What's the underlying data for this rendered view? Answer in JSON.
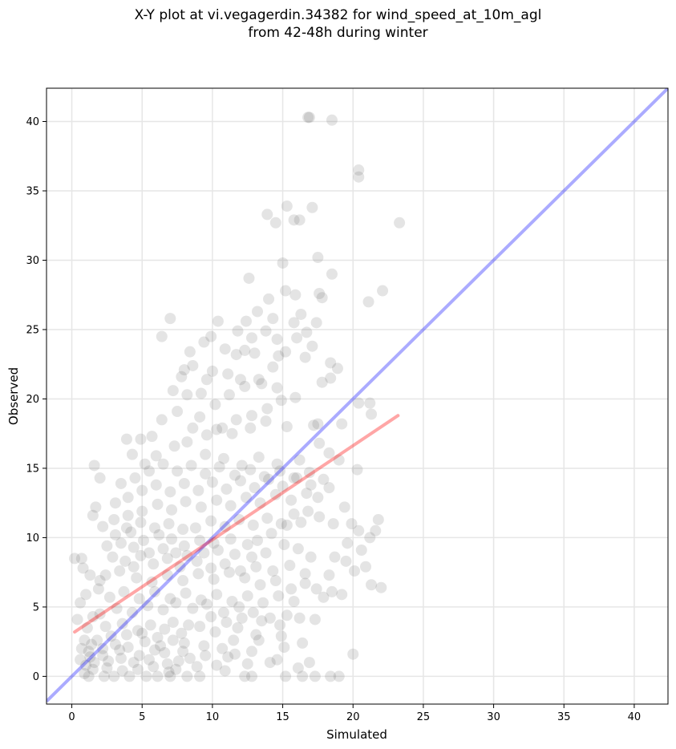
{
  "chart_data": {
    "type": "scatter",
    "title_line1": "X-Y plot at vi.vegagerdin.34382 for wind_speed_at_10m_agl",
    "title_line2": "from 42-48h during winter",
    "xlabel": "Simulated",
    "ylabel": "Observed",
    "xlim": [
      -1.8,
      42.4
    ],
    "ylim": [
      -2.0,
      42.4
    ],
    "xticks": [
      0,
      5,
      10,
      15,
      20,
      25,
      30,
      35,
      40
    ],
    "yticks": [
      0,
      5,
      10,
      15,
      20,
      25,
      30,
      35,
      40
    ],
    "grid": true,
    "colors": {
      "points": "#555555",
      "one_to_one": "#0000ff",
      "fit": "#ff0000"
    },
    "one_to_one_line": {
      "x": [
        -1.8,
        42.4
      ],
      "y": [
        -1.8,
        42.4
      ]
    },
    "fit_line": {
      "x": [
        0.2,
        23.2
      ],
      "y": [
        3.2,
        18.8
      ]
    },
    "points": [
      [
        16.9,
        40.3
      ],
      [
        18.5,
        40.1
      ],
      [
        16.8,
        40.3
      ],
      [
        20.4,
        36.5
      ],
      [
        20.4,
        36.0
      ],
      [
        23.3,
        32.7
      ],
      [
        15.3,
        33.9
      ],
      [
        16.2,
        32.9
      ],
      [
        17.1,
        33.8
      ],
      [
        15.8,
        32.9
      ],
      [
        13.9,
        33.3
      ],
      [
        14.5,
        32.7
      ],
      [
        15.0,
        29.8
      ],
      [
        12.6,
        28.7
      ],
      [
        17.5,
        30.2
      ],
      [
        18.5,
        29.0
      ],
      [
        22.1,
        27.8
      ],
      [
        21.1,
        27.0
      ],
      [
        15.2,
        27.8
      ],
      [
        15.9,
        27.5
      ],
      [
        17.8,
        27.3
      ],
      [
        17.6,
        27.6
      ],
      [
        16.3,
        26.1
      ],
      [
        14.0,
        27.2
      ],
      [
        13.2,
        26.3
      ],
      [
        12.4,
        25.6
      ],
      [
        10.4,
        25.6
      ],
      [
        7.0,
        25.8
      ],
      [
        6.4,
        24.5
      ],
      [
        9.9,
        24.5
      ],
      [
        14.3,
        25.8
      ],
      [
        16.7,
        24.8
      ],
      [
        17.4,
        25.5
      ],
      [
        16.0,
        24.4
      ],
      [
        15.8,
        25.5
      ],
      [
        18.4,
        22.6
      ],
      [
        18.9,
        22.2
      ],
      [
        17.1,
        23.8
      ],
      [
        16.6,
        23.0
      ],
      [
        15.2,
        23.4
      ],
      [
        14.7,
        23.1
      ],
      [
        13.0,
        23.3
      ],
      [
        12.3,
        23.5
      ],
      [
        11.7,
        23.2
      ],
      [
        8.4,
        23.4
      ],
      [
        9.4,
        24.1
      ],
      [
        10.0,
        22.0
      ],
      [
        8.0,
        22.1
      ],
      [
        7.8,
        21.6
      ],
      [
        11.1,
        21.8
      ],
      [
        12.0,
        21.4
      ],
      [
        13.5,
        21.1
      ],
      [
        14.6,
        20.8
      ],
      [
        17.8,
        21.2
      ],
      [
        18.4,
        21.5
      ],
      [
        20.4,
        19.7
      ],
      [
        21.2,
        19.7
      ],
      [
        21.3,
        18.9
      ],
      [
        19.2,
        18.2
      ],
      [
        17.5,
        18.2
      ],
      [
        17.2,
        18.1
      ],
      [
        15.3,
        18.0
      ],
      [
        13.8,
        18.4
      ],
      [
        12.7,
        17.9
      ],
      [
        11.4,
        17.5
      ],
      [
        10.3,
        17.8
      ],
      [
        9.1,
        18.7
      ],
      [
        7.5,
        19.1
      ],
      [
        6.4,
        18.5
      ],
      [
        5.7,
        17.3
      ],
      [
        4.9,
        17.1
      ],
      [
        3.9,
        17.1
      ],
      [
        4.3,
        16.0
      ],
      [
        5.2,
        15.3
      ],
      [
        6.0,
        15.9
      ],
      [
        7.3,
        16.6
      ],
      [
        8.2,
        16.9
      ],
      [
        9.5,
        16.0
      ],
      [
        10.8,
        15.7
      ],
      [
        12.1,
        15.2
      ],
      [
        13.3,
        15.8
      ],
      [
        14.6,
        15.3
      ],
      [
        16.2,
        15.6
      ],
      [
        17.6,
        16.8
      ],
      [
        18.3,
        16.1
      ],
      [
        19.0,
        15.6
      ],
      [
        20.3,
        14.9
      ],
      [
        1.6,
        15.2
      ],
      [
        2.0,
        14.3
      ],
      [
        1.7,
        12.2
      ],
      [
        1.5,
        11.6
      ],
      [
        0.7,
        8.5
      ],
      [
        0.2,
        8.5
      ],
      [
        0.8,
        7.8
      ],
      [
        1.3,
        7.3
      ],
      [
        2.0,
        6.9
      ],
      [
        1.0,
        5.9
      ],
      [
        0.6,
        5.3
      ],
      [
        0.4,
        4.1
      ],
      [
        1.1,
        3.5
      ],
      [
        0.9,
        2.6
      ],
      [
        1.2,
        1.8
      ],
      [
        0.6,
        1.2
      ],
      [
        1.0,
        0.8
      ],
      [
        1.5,
        0.5
      ],
      [
        1.2,
        0.0
      ],
      [
        2.3,
        0.0
      ],
      [
        3.0,
        0.0
      ],
      [
        4.1,
        0.0
      ],
      [
        5.3,
        0.0
      ],
      [
        6.1,
        0.0
      ],
      [
        7.0,
        0.0
      ],
      [
        8.2,
        0.0
      ],
      [
        9.1,
        0.0
      ],
      [
        12.3,
        0.0
      ],
      [
        12.8,
        0.0
      ],
      [
        15.2,
        0.0
      ],
      [
        16.4,
        0.0
      ],
      [
        17.3,
        0.0
      ],
      [
        18.4,
        0.0
      ],
      [
        19.0,
        0.0
      ],
      [
        20.0,
        1.6
      ],
      [
        16.9,
        1.0
      ],
      [
        14.1,
        1.0
      ],
      [
        12.5,
        0.9
      ],
      [
        11.1,
        1.4
      ],
      [
        10.3,
        0.8
      ],
      [
        9.5,
        1.5
      ],
      [
        8.4,
        1.3
      ],
      [
        7.6,
        1.1
      ],
      [
        6.8,
        0.9
      ],
      [
        5.5,
        1.2
      ],
      [
        4.4,
        1.0
      ],
      [
        3.5,
        1.3
      ],
      [
        2.6,
        1.1
      ],
      [
        2.2,
        2.0
      ],
      [
        3.1,
        2.3
      ],
      [
        4.0,
        2.1
      ],
      [
        5.2,
        2.5
      ],
      [
        6.3,
        2.2
      ],
      [
        7.2,
        2.6
      ],
      [
        8.0,
        2.4
      ],
      [
        9.4,
        2.2
      ],
      [
        10.7,
        2.0
      ],
      [
        11.5,
        2.6
      ],
      [
        13.3,
        2.6
      ],
      [
        14.9,
        2.9
      ],
      [
        16.4,
        2.4
      ],
      [
        13.1,
        3.0
      ],
      [
        11.8,
        3.5
      ],
      [
        10.2,
        3.2
      ],
      [
        9.1,
        3.6
      ],
      [
        7.8,
        3.1
      ],
      [
        6.6,
        3.4
      ],
      [
        5.6,
        3.7
      ],
      [
        4.7,
        3.3
      ],
      [
        3.6,
        3.8
      ],
      [
        2.4,
        3.6
      ],
      [
        2.0,
        4.5
      ],
      [
        3.2,
        4.9
      ],
      [
        4.3,
        4.6
      ],
      [
        5.4,
        5.1
      ],
      [
        6.5,
        4.8
      ],
      [
        7.4,
        5.3
      ],
      [
        8.6,
        4.9
      ],
      [
        9.6,
        5.2
      ],
      [
        10.8,
        4.6
      ],
      [
        11.9,
        5.0
      ],
      [
        12.9,
        4.6
      ],
      [
        14.1,
        4.2
      ],
      [
        15.3,
        4.4
      ],
      [
        16.2,
        4.2
      ],
      [
        17.3,
        4.1
      ],
      [
        17.9,
        5.7
      ],
      [
        17.4,
        6.3
      ],
      [
        18.5,
        6.1
      ],
      [
        19.2,
        5.9
      ],
      [
        18.3,
        7.3
      ],
      [
        20.1,
        7.6
      ],
      [
        20.9,
        7.9
      ],
      [
        22.0,
        6.4
      ],
      [
        21.3,
        6.6
      ],
      [
        19.5,
        8.3
      ],
      [
        18.7,
        8.6
      ],
      [
        19.6,
        9.6
      ],
      [
        21.2,
        10.0
      ],
      [
        21.6,
        10.5
      ],
      [
        20.4,
        10.5
      ],
      [
        21.8,
        11.3
      ],
      [
        20.6,
        9.1
      ],
      [
        19.4,
        12.2
      ],
      [
        19.9,
        11.0
      ],
      [
        18.6,
        11.0
      ],
      [
        17.6,
        11.5
      ],
      [
        16.3,
        11.1
      ],
      [
        15.3,
        10.9
      ],
      [
        14.2,
        10.3
      ],
      [
        13.2,
        9.8
      ],
      [
        12.5,
        9.5
      ],
      [
        11.3,
        9.9
      ],
      [
        10.1,
        9.6
      ],
      [
        9.1,
        9.8
      ],
      [
        8.0,
        9.4
      ],
      [
        7.1,
        9.9
      ],
      [
        6.2,
        10.2
      ],
      [
        5.1,
        9.8
      ],
      [
        4.2,
        10.4
      ],
      [
        3.1,
        10.2
      ],
      [
        2.5,
        9.4
      ],
      [
        2.9,
        8.6
      ],
      [
        3.8,
        8.3
      ],
      [
        4.9,
        8.7
      ],
      [
        5.8,
        8.1
      ],
      [
        6.8,
        8.5
      ],
      [
        7.7,
        7.9
      ],
      [
        8.9,
        8.3
      ],
      [
        9.9,
        7.8
      ],
      [
        10.9,
        8.1
      ],
      [
        12.0,
        7.6
      ],
      [
        13.1,
        7.9
      ],
      [
        14.3,
        7.6
      ],
      [
        15.5,
        8.0
      ],
      [
        16.6,
        7.4
      ],
      [
        17.0,
        8.6
      ],
      [
        16.1,
        9.2
      ],
      [
        15.1,
        9.5
      ],
      [
        13.8,
        8.9
      ],
      [
        12.8,
        8.6
      ],
      [
        11.6,
        8.8
      ],
      [
        10.4,
        9.1
      ],
      [
        9.4,
        8.9
      ],
      [
        8.2,
        8.7
      ],
      [
        7.4,
        8.9
      ],
      [
        6.5,
        9.2
      ],
      [
        5.5,
        8.9
      ],
      [
        4.4,
        9.3
      ],
      [
        3.5,
        9.6
      ],
      [
        2.2,
        10.8
      ],
      [
        3.0,
        11.3
      ],
      [
        4.0,
        11.6
      ],
      [
        5.0,
        11.9
      ],
      [
        6.1,
        12.4
      ],
      [
        7.1,
        12.0
      ],
      [
        8.1,
        12.6
      ],
      [
        9.2,
        12.2
      ],
      [
        10.3,
        12.7
      ],
      [
        11.3,
        12.3
      ],
      [
        12.4,
        12.9
      ],
      [
        13.4,
        12.5
      ],
      [
        14.5,
        13.1
      ],
      [
        15.6,
        12.7
      ],
      [
        16.7,
        13.2
      ],
      [
        17.5,
        12.9
      ],
      [
        18.3,
        13.6
      ],
      [
        17.9,
        14.2
      ],
      [
        16.9,
        14.7
      ],
      [
        15.8,
        14.3
      ],
      [
        14.8,
        14.8
      ],
      [
        13.7,
        14.4
      ],
      [
        12.7,
        14.9
      ],
      [
        11.6,
        14.5
      ],
      [
        10.5,
        15.1
      ],
      [
        9.5,
        14.6
      ],
      [
        8.5,
        15.2
      ],
      [
        7.5,
        14.8
      ],
      [
        6.5,
        15.3
      ],
      [
        5.5,
        14.8
      ],
      [
        4.5,
        14.3
      ],
      [
        3.5,
        13.9
      ],
      [
        3.1,
        12.5
      ],
      [
        4.0,
        12.9
      ],
      [
        5.0,
        13.4
      ],
      [
        6.0,
        13.8
      ],
      [
        7.0,
        13.3
      ],
      [
        8.0,
        13.9
      ],
      [
        9.0,
        13.4
      ],
      [
        10.0,
        14.0
      ],
      [
        11.0,
        13.5
      ],
      [
        12.0,
        14.1
      ],
      [
        13.0,
        13.6
      ],
      [
        14.0,
        14.2
      ],
      [
        15.0,
        13.7
      ],
      [
        16.0,
        14.3
      ],
      [
        17.0,
        13.8
      ],
      [
        4.6,
        7.1
      ],
      [
        5.7,
        6.8
      ],
      [
        6.8,
        7.3
      ],
      [
        7.9,
        6.9
      ],
      [
        9.0,
        7.4
      ],
      [
        10.1,
        7.0
      ],
      [
        11.2,
        7.5
      ],
      [
        12.3,
        7.1
      ],
      [
        13.4,
        6.6
      ],
      [
        14.5,
        6.9
      ],
      [
        15.6,
        6.3
      ],
      [
        16.6,
        6.7
      ],
      [
        15.8,
        5.4
      ],
      [
        14.7,
        5.8
      ],
      [
        13.6,
        5.3
      ],
      [
        12.5,
        5.8
      ],
      [
        11.4,
        5.4
      ],
      [
        10.3,
        5.9
      ],
      [
        9.2,
        5.5
      ],
      [
        8.1,
        6.0
      ],
      [
        7.0,
        5.6
      ],
      [
        5.9,
        6.1
      ],
      [
        4.8,
        5.6
      ],
      [
        3.7,
        6.1
      ],
      [
        2.7,
        5.7
      ],
      [
        1.9,
        6.3
      ],
      [
        2.4,
        7.3
      ],
      [
        3.4,
        7.6
      ],
      [
        4.4,
        7.9
      ],
      [
        1.5,
        4.3
      ],
      [
        2.8,
        2.9
      ],
      [
        3.9,
        3.0
      ],
      [
        5.0,
        3.1
      ],
      [
        6.1,
        2.8
      ],
      [
        7.2,
        3.9
      ],
      [
        8.3,
        3.7
      ],
      [
        9.9,
        4.3
      ],
      [
        11.0,
        3.9
      ],
      [
        12.1,
        4.2
      ],
      [
        13.5,
        4.0
      ],
      [
        14.8,
        3.7
      ],
      [
        6.6,
        1.7
      ],
      [
        7.9,
        1.8
      ],
      [
        8.9,
        0.7
      ],
      [
        10.9,
        0.4
      ],
      [
        11.6,
        1.6
      ],
      [
        12.8,
        1.8
      ],
      [
        14.6,
        1.2
      ],
      [
        15.1,
        2.1
      ],
      [
        16.1,
        0.6
      ],
      [
        3.4,
        1.9
      ],
      [
        4.8,
        1.5
      ],
      [
        5.9,
        1.9
      ],
      [
        2.5,
        0.6
      ],
      [
        3.6,
        0.4
      ],
      [
        4.7,
        0.5
      ],
      [
        5.8,
        0.7
      ],
      [
        6.9,
        0.3
      ],
      [
        7.4,
        0.5
      ],
      [
        1.8,
        2.6
      ],
      [
        1.3,
        1.4
      ],
      [
        0.9,
        0.2
      ],
      [
        1.6,
        1.0
      ],
      [
        2.2,
        1.5
      ],
      [
        0.7,
        2.0
      ],
      [
        1.4,
        2.3
      ],
      [
        8.8,
        10.7
      ],
      [
        9.9,
        11.2
      ],
      [
        10.9,
        10.8
      ],
      [
        11.9,
        11.3
      ],
      [
        12.9,
        10.9
      ],
      [
        13.9,
        11.4
      ],
      [
        14.9,
        11.0
      ],
      [
        15.8,
        11.7
      ],
      [
        16.8,
        11.9
      ],
      [
        7.9,
        10.6
      ],
      [
        6.9,
        11.0
      ],
      [
        5.9,
        10.7
      ],
      [
        4.9,
        11.1
      ],
      [
        3.9,
        10.7
      ],
      [
        8.6,
        17.9
      ],
      [
        9.6,
        17.4
      ],
      [
        10.7,
        17.9
      ],
      [
        11.7,
        18.5
      ],
      [
        12.8,
        18.8
      ],
      [
        13.9,
        19.3
      ],
      [
        14.9,
        19.9
      ],
      [
        15.9,
        20.1
      ],
      [
        11.2,
        20.3
      ],
      [
        10.2,
        19.6
      ],
      [
        9.2,
        20.4
      ],
      [
        8.2,
        20.3
      ],
      [
        7.2,
        20.6
      ],
      [
        12.3,
        20.9
      ],
      [
        13.3,
        21.4
      ],
      [
        14.3,
        22.3
      ],
      [
        9.6,
        21.4
      ],
      [
        8.6,
        22.4
      ],
      [
        10.9,
        23.6
      ],
      [
        11.8,
        24.9
      ],
      [
        12.8,
        24.4
      ],
      [
        13.8,
        24.9
      ],
      [
        14.6,
        24.3
      ]
    ]
  }
}
